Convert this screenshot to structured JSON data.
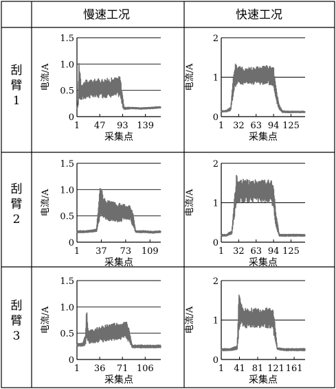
{
  "table": {
    "header": [
      "",
      "慢速工况",
      "快速工况"
    ],
    "rows": [
      {
        "label_lines": [
          "刮",
          "臂",
          "1"
        ]
      },
      {
        "label_lines": [
          "刮",
          "臂",
          "2"
        ]
      },
      {
        "label_lines": [
          "刮",
          "臂",
          "3"
        ]
      }
    ]
  },
  "chart_data": [
    {
      "type": "line",
      "row": 1,
      "col": 1,
      "xlabel": "采集点",
      "ylabel": "电流/A",
      "ylim": [
        0,
        1.5
      ],
      "yticks": [
        "0",
        "0.5",
        "1.0",
        "1.5"
      ],
      "xlim": [
        1,
        170
      ],
      "xticks": [
        "1",
        "47",
        "93",
        "139"
      ],
      "xtick_values": [
        1,
        47,
        93,
        139
      ],
      "grid": "horizontal",
      "color": "#6e6e6e",
      "series": [
        {
          "x": [
            1,
            3,
            5,
            7,
            9,
            10,
            20,
            40,
            60,
            80,
            88,
            92,
            96,
            110,
            130,
            150,
            165
          ],
          "lo": [
            0.15,
            0.18,
            0.3,
            0.32,
            0.3,
            0.3,
            0.35,
            0.35,
            0.36,
            0.38,
            0.38,
            0.2,
            0.13,
            0.15,
            0.14,
            0.15,
            0.16
          ],
          "hi": [
            0.17,
            0.25,
            1.1,
            0.95,
            0.7,
            0.65,
            0.7,
            0.72,
            0.73,
            0.75,
            0.78,
            0.5,
            0.18,
            0.18,
            0.17,
            0.18,
            0.19
          ]
        }
      ]
    },
    {
      "type": "line",
      "row": 1,
      "col": 2,
      "xlabel": "采集点",
      "ylabel": "电流/A",
      "ylim": [
        0,
        2
      ],
      "yticks": [
        "0",
        "1",
        "2"
      ],
      "xlim": [
        1,
        150
      ],
      "xticks": [
        "1",
        "32",
        "63",
        "94",
        "125"
      ],
      "xtick_values": [
        1,
        32,
        63,
        94,
        125
      ],
      "grid": "horizontal",
      "color": "#6e6e6e",
      "series": [
        {
          "x": [
            1,
            10,
            18,
            22,
            26,
            30,
            40,
            60,
            80,
            90,
            94,
            98,
            104,
            110,
            120,
            140,
            150
          ],
          "lo": [
            0.12,
            0.12,
            0.15,
            0.5,
            0.75,
            0.8,
            0.8,
            0.82,
            0.8,
            0.8,
            0.7,
            0.4,
            0.18,
            0.1,
            0.1,
            0.1,
            0.1
          ],
          "hi": [
            0.15,
            0.16,
            0.25,
            1.0,
            1.4,
            1.3,
            1.25,
            1.28,
            1.3,
            1.3,
            1.25,
            0.8,
            0.3,
            0.15,
            0.14,
            0.14,
            0.14
          ]
        }
      ]
    },
    {
      "type": "line",
      "row": 2,
      "col": 1,
      "xlabel": "采集点",
      "ylabel": "电流/A",
      "ylim": [
        0,
        1.5
      ],
      "yticks": [
        "0",
        "0.5",
        "1.0",
        "1.5"
      ],
      "xlim": [
        1,
        125
      ],
      "xticks": [
        "1",
        "37",
        "73",
        "109"
      ],
      "xtick_values": [
        1,
        37,
        73,
        109
      ],
      "grid": "horizontal",
      "color": "#6e6e6e",
      "series": [
        {
          "x": [
            1,
            15,
            30,
            33,
            36,
            40,
            50,
            60,
            70,
            80,
            84,
            88,
            100,
            115,
            125
          ],
          "lo": [
            0.18,
            0.18,
            0.2,
            0.35,
            0.5,
            0.45,
            0.4,
            0.38,
            0.4,
            0.4,
            0.3,
            0.18,
            0.18,
            0.17,
            0.18
          ],
          "hi": [
            0.22,
            0.22,
            0.25,
            0.8,
            1.15,
            0.85,
            0.78,
            0.75,
            0.72,
            0.7,
            0.55,
            0.22,
            0.22,
            0.21,
            0.22
          ]
        }
      ]
    },
    {
      "type": "line",
      "row": 2,
      "col": 2,
      "xlabel": "采集点",
      "ylabel": "电流/A",
      "ylim": [
        0,
        2
      ],
      "yticks": [
        "0",
        "1",
        "2"
      ],
      "xlim": [
        1,
        150
      ],
      "xticks": [
        "1",
        "32",
        "63",
        "94",
        "125"
      ],
      "xtick_values": [
        1,
        32,
        63,
        94,
        125
      ],
      "grid": "horizontal",
      "color": "#6e6e6e",
      "series": [
        {
          "x": [
            1,
            10,
            20,
            24,
            28,
            32,
            50,
            70,
            85,
            90,
            94,
            98,
            104,
            120,
            150
          ],
          "lo": [
            0.15,
            0.15,
            0.2,
            0.6,
            0.9,
            1.0,
            1.0,
            1.0,
            1.0,
            0.95,
            0.8,
            0.4,
            0.15,
            0.15,
            0.15
          ],
          "hi": [
            0.2,
            0.2,
            0.3,
            1.1,
            1.7,
            1.6,
            1.6,
            1.6,
            1.6,
            1.6,
            1.4,
            0.8,
            0.2,
            0.2,
            0.2
          ]
        }
      ]
    },
    {
      "type": "line",
      "row": 3,
      "col": 1,
      "xlabel": "采集点",
      "ylabel": "电流/A",
      "ylim": [
        0,
        1.5
      ],
      "yticks": [
        "0",
        "0.5",
        "1.0",
        "1.5"
      ],
      "xlim": [
        1,
        130
      ],
      "xticks": [
        "1",
        "36",
        "71",
        "106"
      ],
      "xtick_values": [
        1,
        36,
        71,
        106
      ],
      "grid": "horizontal",
      "color": "#6e6e6e",
      "series": [
        {
          "x": [
            1,
            10,
            14,
            16,
            18,
            20,
            30,
            50,
            70,
            78,
            82,
            86,
            100,
            120,
            130
          ],
          "lo": [
            0.25,
            0.25,
            0.27,
            0.4,
            0.35,
            0.3,
            0.32,
            0.35,
            0.38,
            0.38,
            0.3,
            0.22,
            0.22,
            0.22,
            0.22
          ],
          "hi": [
            0.3,
            0.32,
            0.5,
            1.0,
            0.6,
            0.55,
            0.6,
            0.68,
            0.7,
            0.72,
            0.55,
            0.28,
            0.28,
            0.27,
            0.28
          ]
        }
      ]
    },
    {
      "type": "line",
      "row": 3,
      "col": 2,
      "xlabel": "采集点",
      "ylabel": "电流/A",
      "ylim": [
        0,
        2
      ],
      "yticks": [
        "0",
        "1",
        "2"
      ],
      "xlim": [
        1,
        185
      ],
      "xticks": [
        "1",
        "41",
        "81",
        "121",
        "161"
      ],
      "xtick_values": [
        1,
        41,
        81,
        121,
        161
      ],
      "grid": "horizontal",
      "color": "#6e6e6e",
      "series": [
        {
          "x": [
            1,
            20,
            36,
            40,
            44,
            50,
            70,
            90,
            110,
            114,
            118,
            124,
            140,
            160,
            185
          ],
          "lo": [
            0.22,
            0.22,
            0.25,
            0.6,
            0.9,
            0.8,
            0.8,
            0.8,
            0.8,
            0.75,
            0.5,
            0.25,
            0.22,
            0.22,
            0.22
          ],
          "hi": [
            0.28,
            0.28,
            0.35,
            1.9,
            1.5,
            1.3,
            1.3,
            1.3,
            1.35,
            1.3,
            1.0,
            0.3,
            0.28,
            0.28,
            0.28
          ]
        }
      ]
    }
  ]
}
